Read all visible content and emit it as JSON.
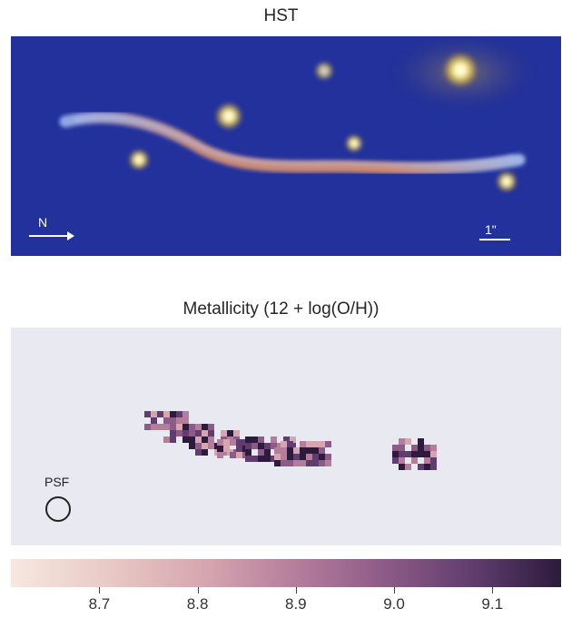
{
  "panels": {
    "hst": {
      "title": "HST",
      "north_label": "N",
      "scale_label": "1\""
    },
    "metallicity": {
      "title": "Metallicity (12 + log(O/H))",
      "psf_label": "PSF"
    }
  },
  "colorbar": {
    "ticks": [
      "8.7",
      "8.8",
      "8.9",
      "9.0",
      "9.1"
    ],
    "range": [
      8.61,
      9.17
    ],
    "colors": [
      "#f6e8e0",
      "#e9c9c4",
      "#d6a6b0",
      "#b47d9c",
      "#8d5b87",
      "#603d6e",
      "#2c1b3c"
    ]
  },
  "colors": {
    "hst_background": "#1b2a8c",
    "map_background": "#e8e9f1",
    "arc": "#c98a7a",
    "galaxy_glow": "#fff3a0"
  }
}
